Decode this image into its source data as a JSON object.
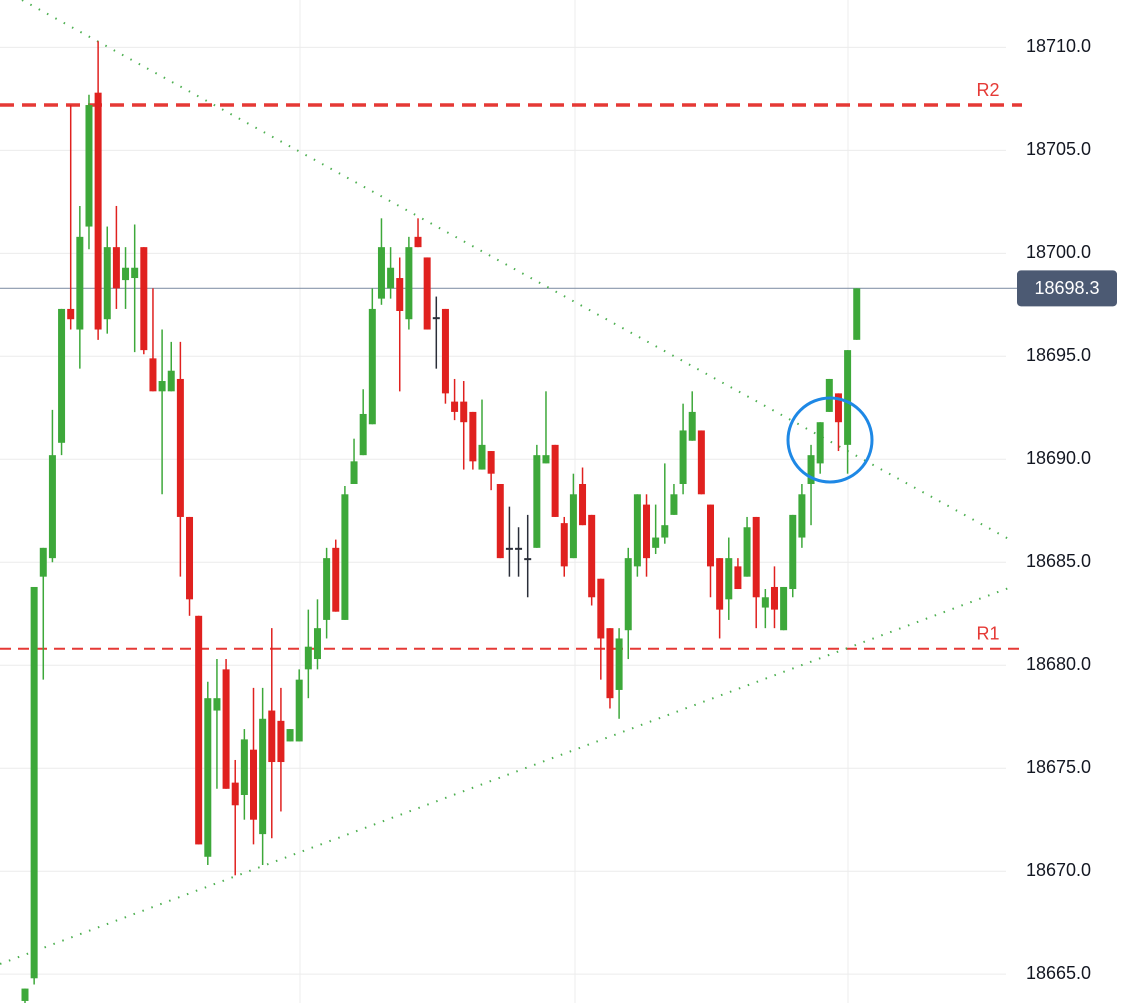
{
  "chart_data": {
    "type": "candlestick",
    "ylim": [
      18663.6,
      18712.3
    ],
    "yticks": [
      {
        "value": 18665,
        "label": "18665.0"
      },
      {
        "value": 18670,
        "label": "18670.0"
      },
      {
        "value": 18675,
        "label": "18675.0"
      },
      {
        "value": 18680,
        "label": "18680.0"
      },
      {
        "value": 18685,
        "label": "18685.0"
      },
      {
        "value": 18690,
        "label": "18690.0"
      },
      {
        "value": 18695,
        "label": "18695.0"
      },
      {
        "value": 18700,
        "label": "18700.0"
      },
      {
        "value": 18705,
        "label": "18705.0"
      },
      {
        "value": 18710,
        "label": "18710.0"
      }
    ],
    "grid": true,
    "up_color": "#3da83a",
    "down_color": "#e0211f",
    "doji_color": "#2a2e39",
    "open": [
      18663.7,
      18664.8,
      18684.3,
      18685.2,
      18690.8,
      18697.3,
      18696.3,
      18701.3,
      18707.8,
      18696.8,
      18700.3,
      18698.7,
      18698.8,
      18700.3,
      18694.9,
      18693.3,
      18693.3,
      18693.9,
      18687.2,
      18682.4,
      18670.7,
      18677.8,
      18679.8,
      18674.3,
      18673.7,
      18675.9,
      18671.8,
      18677.8,
      18677.3,
      18676.3,
      18676.3,
      18679.8,
      18680.3,
      18682.2,
      18685.7,
      18682.2,
      18688.8,
      18690.2,
      18691.7,
      18697.8,
      18698.3,
      18698.8,
      18696.8,
      18700.8,
      18699.8,
      18696.9,
      18697.3,
      18692.8,
      18692.8,
      18692.3,
      18689.5,
      18690.4,
      18688.8,
      18685.7,
      18685.7,
      18685.2,
      18685.7,
      18689.8,
      18690.7,
      18686.9,
      18685.2,
      18688.8,
      18687.3,
      18684.2,
      18681.8,
      18678.8,
      18681.7,
      18684.8,
      18687.8,
      18685.7,
      18686.2,
      18687.3,
      18688.8,
      18690.9,
      18691.4,
      18687.8,
      18685.2,
      18683.2,
      18684.8,
      18684.3,
      18687.2,
      18682.8,
      18683.8,
      18681.7,
      18683.7,
      18686.2,
      18688.8,
      18689.8,
      18692.3,
      18693.2,
      18690.7,
      18695.8
    ],
    "high": [
      18664.3,
      18683.8,
      18685.7,
      18692.4,
      18697.3,
      18707.2,
      18702.3,
      18707.7,
      18710.3,
      18701.3,
      18702.3,
      18700.3,
      18701.4,
      18700.3,
      18698.3,
      18696.3,
      18695.7,
      18695.7,
      18687.2,
      18682.4,
      18679.2,
      18680.3,
      18680.3,
      18675.4,
      18676.9,
      18678.9,
      18678.9,
      18681.8,
      18678.9,
      18676.9,
      18679.8,
      18682.7,
      18683.2,
      18685.7,
      18686.1,
      18688.7,
      18691.0,
      18693.4,
      18698.3,
      18701.7,
      18700.3,
      18699.8,
      18700.8,
      18701.7,
      18699.8,
      18697.9,
      18697.3,
      18693.9,
      18693.8,
      18692.3,
      18692.9,
      18690.4,
      18688.8,
      18687.7,
      18686.7,
      18687.3,
      18690.7,
      18693.3,
      18690.7,
      18687.2,
      18689.3,
      18689.6,
      18687.3,
      18684.2,
      18681.8,
      18681.8,
      18685.7,
      18688.3,
      18688.3,
      18687.8,
      18689.8,
      18688.8,
      18692.7,
      18693.3,
      18691.4,
      18687.8,
      18685.2,
      18686.2,
      18685.2,
      18687.2,
      18687.2,
      18683.7,
      18684.8,
      18683.8,
      18687.3,
      18688.8,
      18690.7,
      18691.8,
      18693.9,
      18693.2,
      18695.3,
      18698.3
    ],
    "low": [
      18663.6,
      18664.5,
      18679.3,
      18685.0,
      18690.2,
      18696.3,
      18694.4,
      18700.2,
      18695.8,
      18696.1,
      18697.3,
      18697.3,
      18695.2,
      18695.1,
      18693.3,
      18688.3,
      18693.3,
      18684.3,
      18682.4,
      18671.3,
      18670.3,
      18674.0,
      18674.0,
      18669.8,
      18672.5,
      18671.3,
      18670.3,
      18671.6,
      18672.9,
      18676.3,
      18676.3,
      18678.4,
      18679.8,
      18681.3,
      18682.6,
      18682.2,
      18688.8,
      18690.2,
      18691.7,
      18697.5,
      18697.8,
      18693.3,
      18696.3,
      18700.3,
      18696.3,
      18694.4,
      18692.7,
      18691.9,
      18689.5,
      18689.5,
      18689.5,
      18688.5,
      18685.2,
      18684.3,
      18684.3,
      18683.3,
      18685.7,
      18689.8,
      18687.2,
      18684.3,
      18685.2,
      18686.8,
      18682.9,
      18679.3,
      18677.9,
      18677.4,
      18680.3,
      18684.3,
      18684.3,
      18685.4,
      18685.9,
      18687.3,
      18688.3,
      18690.9,
      18688.3,
      18683.3,
      18681.3,
      18682.2,
      18683.7,
      18684.3,
      18681.8,
      18681.8,
      18681.8,
      18681.7,
      18683.3,
      18685.7,
      18686.8,
      18689.3,
      18692.3,
      18690.4,
      18689.3,
      18695.8
    ],
    "close": [
      18664.3,
      18683.8,
      18685.7,
      18690.2,
      18697.3,
      18696.8,
      18700.8,
      18707.2,
      18696.3,
      18700.3,
      18698.3,
      18699.3,
      18699.3,
      18695.3,
      18693.3,
      18693.8,
      18694.3,
      18687.2,
      18683.2,
      18671.3,
      18678.4,
      18678.4,
      18674.0,
      18673.2,
      18676.4,
      18672.5,
      18677.4,
      18675.3,
      18675.3,
      18676.9,
      18679.3,
      18680.9,
      18681.8,
      18685.2,
      18682.6,
      18688.3,
      18689.9,
      18692.2,
      18697.3,
      18700.3,
      18699.3,
      18697.2,
      18700.3,
      18700.3,
      18696.3,
      18696.9,
      18693.2,
      18692.3,
      18691.8,
      18689.9,
      18690.7,
      18689.3,
      18685.2,
      18685.7,
      18685.7,
      18685.2,
      18690.2,
      18690.2,
      18687.2,
      18684.8,
      18688.3,
      18686.8,
      18683.3,
      18681.3,
      18678.4,
      18681.3,
      18685.2,
      18688.3,
      18685.2,
      18686.2,
      18686.8,
      18688.3,
      18691.4,
      18692.3,
      18688.3,
      18684.8,
      18682.7,
      18685.2,
      18683.7,
      18686.7,
      18683.3,
      18683.3,
      18682.7,
      18683.8,
      18687.3,
      18688.3,
      18690.2,
      18691.8,
      18693.9,
      18691.8,
      18695.3,
      18698.3
    ],
    "levels": [
      {
        "label": "R2",
        "value": 18707.2,
        "color": "#e53935"
      },
      {
        "label": "R1",
        "value": 18680.8,
        "color": "#e53935"
      }
    ],
    "last_price": {
      "value": 18698.3,
      "color": "#4c5a73"
    }
  }
}
